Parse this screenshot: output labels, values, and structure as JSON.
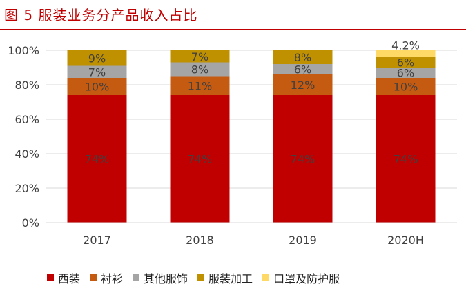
{
  "figure": {
    "title": "图 5  服装业务分产品收入占比"
  },
  "chart_data": {
    "type": "bar",
    "stacked": true,
    "categories": [
      "2017",
      "2018",
      "2019",
      "2020H"
    ],
    "ylim": [
      0,
      100
    ],
    "yticks": [
      0,
      20,
      40,
      60,
      80,
      100
    ],
    "ytick_labels": [
      "0%",
      "20%",
      "40%",
      "60%",
      "80%",
      "100%"
    ],
    "grid": true,
    "legend_position": "bottom",
    "series": [
      {
        "name": "西装",
        "color": "#c00000",
        "values": [
          74,
          74,
          74,
          74
        ],
        "labels": [
          "74%",
          "74%",
          "74%",
          "74%"
        ]
      },
      {
        "name": "衬衫",
        "color": "#c55a11",
        "values": [
          10,
          11,
          12,
          10
        ],
        "labels": [
          "10%",
          "11%",
          "12%",
          "10%"
        ]
      },
      {
        "name": "其他服饰",
        "color": "#a5a5a5",
        "values": [
          7,
          8,
          6,
          6
        ],
        "labels": [
          "7%",
          "8%",
          "6%",
          "6%"
        ]
      },
      {
        "name": "服装加工",
        "color": "#bf9000",
        "values": [
          9,
          7,
          8,
          6
        ],
        "labels": [
          "9%",
          "7%",
          "8%",
          "6%"
        ]
      },
      {
        "name": "口罩及防护服",
        "color": "#ffd966",
        "values": [
          0,
          0,
          0,
          4.2
        ],
        "labels": [
          "",
          "",
          "",
          "4.2%"
        ]
      }
    ]
  }
}
